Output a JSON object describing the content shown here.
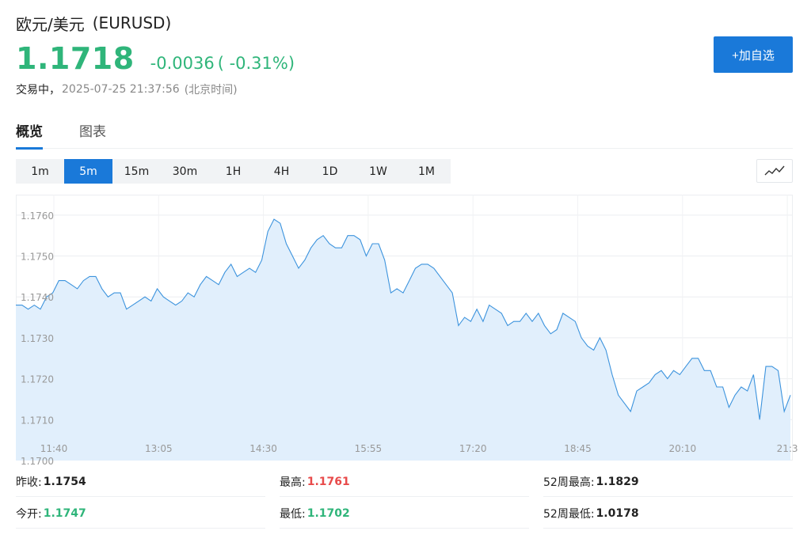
{
  "header": {
    "name": "欧元/美元",
    "code": "(EURUSD)",
    "price": "1.1718",
    "change": "-0.0036",
    "change_pct": "( -0.31%)",
    "status_label": "交易中，",
    "timestamp": "2025-07-25 21:37:56",
    "timezone": "(北京时间)",
    "add_watchlist_label": "+加自选"
  },
  "colors": {
    "accent": "#1a79d9",
    "down": "#2fb57a",
    "up": "#e84a4a",
    "line": "#3c93dd",
    "area": "#e1effc"
  },
  "tabs": [
    {
      "label": "概览",
      "active": true
    },
    {
      "label": "图表",
      "active": false
    }
  ],
  "intervals": [
    "1m",
    "5m",
    "15m",
    "30m",
    "1H",
    "4H",
    "1D",
    "1W",
    "1M"
  ],
  "selected_interval": "5m",
  "chart_type_icon": "line-chart-icon",
  "chart_data": {
    "type": "area",
    "ylim": [
      1.17,
      1.1765
    ],
    "yticks": [
      "1.1700",
      "1.1710",
      "1.1720",
      "1.1730",
      "1.1740",
      "1.1750",
      "1.1760"
    ],
    "xticks": [
      "11:40",
      "13:05",
      "14:30",
      "15:55",
      "17:20",
      "18:45",
      "20:10",
      "21:3"
    ],
    "grid": true,
    "series": [
      {
        "values": [
          1.1738,
          1.1738,
          1.1737,
          1.1738,
          1.1737,
          1.174,
          1.1741,
          1.1744,
          1.1744,
          1.1743,
          1.1742,
          1.1744,
          1.1745,
          1.1745,
          1.1742,
          1.174,
          1.1741,
          1.1741,
          1.1737,
          1.1738,
          1.1739,
          1.174,
          1.1739,
          1.1742,
          1.174,
          1.1739,
          1.1738,
          1.1739,
          1.1741,
          1.174,
          1.1743,
          1.1745,
          1.1744,
          1.1743,
          1.1746,
          1.1748,
          1.1745,
          1.1746,
          1.1747,
          1.1746,
          1.1749,
          1.1756,
          1.1759,
          1.1758,
          1.1753,
          1.175,
          1.1747,
          1.1749,
          1.1752,
          1.1754,
          1.1755,
          1.1753,
          1.1752,
          1.1752,
          1.1755,
          1.1755,
          1.1754,
          1.175,
          1.1753,
          1.1753,
          1.1749,
          1.1741,
          1.1742,
          1.1741,
          1.1744,
          1.1747,
          1.1748,
          1.1748,
          1.1747,
          1.1745,
          1.1743,
          1.1741,
          1.1733,
          1.1735,
          1.1734,
          1.1737,
          1.1734,
          1.1738,
          1.1737,
          1.1736,
          1.1733,
          1.1734,
          1.1734,
          1.1736,
          1.1734,
          1.1736,
          1.1733,
          1.1731,
          1.1732,
          1.1736,
          1.1735,
          1.1734,
          1.173,
          1.1728,
          1.1727,
          1.173,
          1.1727,
          1.1721,
          1.1716,
          1.1714,
          1.1712,
          1.1717,
          1.1718,
          1.1719,
          1.1721,
          1.1722,
          1.172,
          1.1722,
          1.1721,
          1.1723,
          1.1725,
          1.1725,
          1.1722,
          1.1722,
          1.1718,
          1.1718,
          1.1713,
          1.1716,
          1.1718,
          1.1717,
          1.1721,
          1.171,
          1.1723,
          1.1723,
          1.1722,
          1.1712,
          1.1716
        ]
      }
    ]
  },
  "stats": [
    [
      {
        "label": "昨收:",
        "value": "1.1754",
        "tone": "dark"
      },
      {
        "label": "最高:",
        "value": "1.1761",
        "tone": "red"
      },
      {
        "label": "52周最高:",
        "value": "1.1829",
        "tone": "dark"
      }
    ],
    [
      {
        "label": "今开:",
        "value": "1.1747",
        "tone": "green"
      },
      {
        "label": "最低:",
        "value": "1.1702",
        "tone": "green"
      },
      {
        "label": "52周最低:",
        "value": "1.0178",
        "tone": "dark"
      }
    ]
  ]
}
